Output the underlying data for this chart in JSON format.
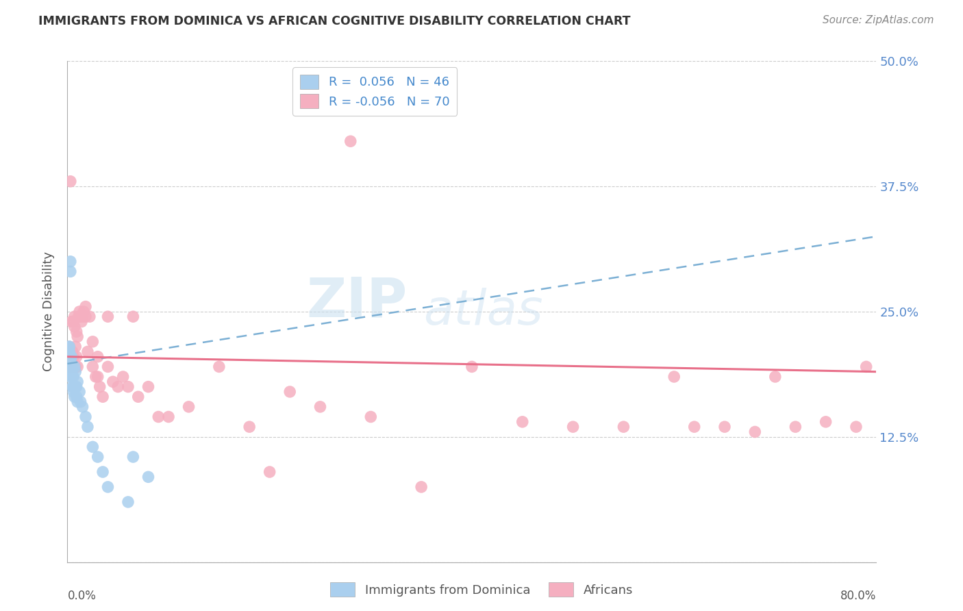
{
  "title": "IMMIGRANTS FROM DOMINICA VS AFRICAN COGNITIVE DISABILITY CORRELATION CHART",
  "source": "Source: ZipAtlas.com",
  "ylabel": "Cognitive Disability",
  "yticks": [
    0.0,
    0.125,
    0.25,
    0.375,
    0.5
  ],
  "ytick_labels": [
    "",
    "12.5%",
    "25.0%",
    "37.5%",
    "50.0%"
  ],
  "xlim": [
    0.0,
    0.8
  ],
  "ylim": [
    0.0,
    0.5
  ],
  "legend_r1": "R =  0.056",
  "legend_n1": "N = 46",
  "legend_r2": "R = -0.056",
  "legend_n2": "N = 70",
  "blue_color": "#aacfee",
  "pink_color": "#f5afc0",
  "blue_line_color": "#7bafd4",
  "pink_line_color": "#e8708a",
  "watermark_text": "ZIP",
  "watermark_text2": "atlas",
  "blue_x": [
    0.001,
    0.001,
    0.001,
    0.001,
    0.001,
    0.002,
    0.002,
    0.002,
    0.002,
    0.002,
    0.002,
    0.003,
    0.003,
    0.003,
    0.003,
    0.003,
    0.004,
    0.004,
    0.004,
    0.004,
    0.005,
    0.005,
    0.005,
    0.006,
    0.006,
    0.006,
    0.007,
    0.007,
    0.008,
    0.008,
    0.009,
    0.009,
    0.01,
    0.01,
    0.012,
    0.013,
    0.015,
    0.018,
    0.02,
    0.025,
    0.03,
    0.035,
    0.04,
    0.06,
    0.065,
    0.08
  ],
  "blue_y": [
    0.205,
    0.21,
    0.215,
    0.195,
    0.2,
    0.195,
    0.205,
    0.21,
    0.185,
    0.2,
    0.215,
    0.29,
    0.3,
    0.195,
    0.205,
    0.2,
    0.195,
    0.205,
    0.19,
    0.195,
    0.195,
    0.185,
    0.175,
    0.17,
    0.185,
    0.175,
    0.195,
    0.165,
    0.19,
    0.175,
    0.175,
    0.165,
    0.18,
    0.16,
    0.17,
    0.16,
    0.155,
    0.145,
    0.135,
    0.115,
    0.105,
    0.09,
    0.075,
    0.06,
    0.105,
    0.085
  ],
  "pink_x": [
    0.001,
    0.001,
    0.002,
    0.002,
    0.003,
    0.003,
    0.004,
    0.004,
    0.005,
    0.005,
    0.006,
    0.006,
    0.007,
    0.007,
    0.008,
    0.008,
    0.009,
    0.009,
    0.01,
    0.01,
    0.011,
    0.012,
    0.013,
    0.014,
    0.015,
    0.016,
    0.018,
    0.018,
    0.02,
    0.022,
    0.025,
    0.025,
    0.028,
    0.03,
    0.03,
    0.032,
    0.035,
    0.04,
    0.04,
    0.045,
    0.05,
    0.055,
    0.06,
    0.065,
    0.07,
    0.08,
    0.09,
    0.1,
    0.12,
    0.15,
    0.18,
    0.2,
    0.22,
    0.25,
    0.28,
    0.3,
    0.35,
    0.4,
    0.45,
    0.5,
    0.55,
    0.6,
    0.62,
    0.65,
    0.68,
    0.7,
    0.72,
    0.75,
    0.78,
    0.79
  ],
  "pink_y": [
    0.2,
    0.205,
    0.195,
    0.215,
    0.2,
    0.38,
    0.205,
    0.24,
    0.195,
    0.21,
    0.205,
    0.24,
    0.245,
    0.235,
    0.195,
    0.215,
    0.205,
    0.23,
    0.195,
    0.225,
    0.245,
    0.25,
    0.245,
    0.24,
    0.245,
    0.25,
    0.245,
    0.255,
    0.21,
    0.245,
    0.195,
    0.22,
    0.185,
    0.205,
    0.185,
    0.175,
    0.165,
    0.245,
    0.195,
    0.18,
    0.175,
    0.185,
    0.175,
    0.245,
    0.165,
    0.175,
    0.145,
    0.145,
    0.155,
    0.195,
    0.135,
    0.09,
    0.17,
    0.155,
    0.42,
    0.145,
    0.075,
    0.195,
    0.14,
    0.135,
    0.135,
    0.185,
    0.135,
    0.135,
    0.13,
    0.185,
    0.135,
    0.14,
    0.135,
    0.195
  ],
  "blue_trend_x": [
    0.0,
    0.8
  ],
  "blue_trend_y": [
    0.198,
    0.325
  ],
  "pink_trend_x": [
    0.0,
    0.8
  ],
  "pink_trend_y": [
    0.205,
    0.19
  ]
}
